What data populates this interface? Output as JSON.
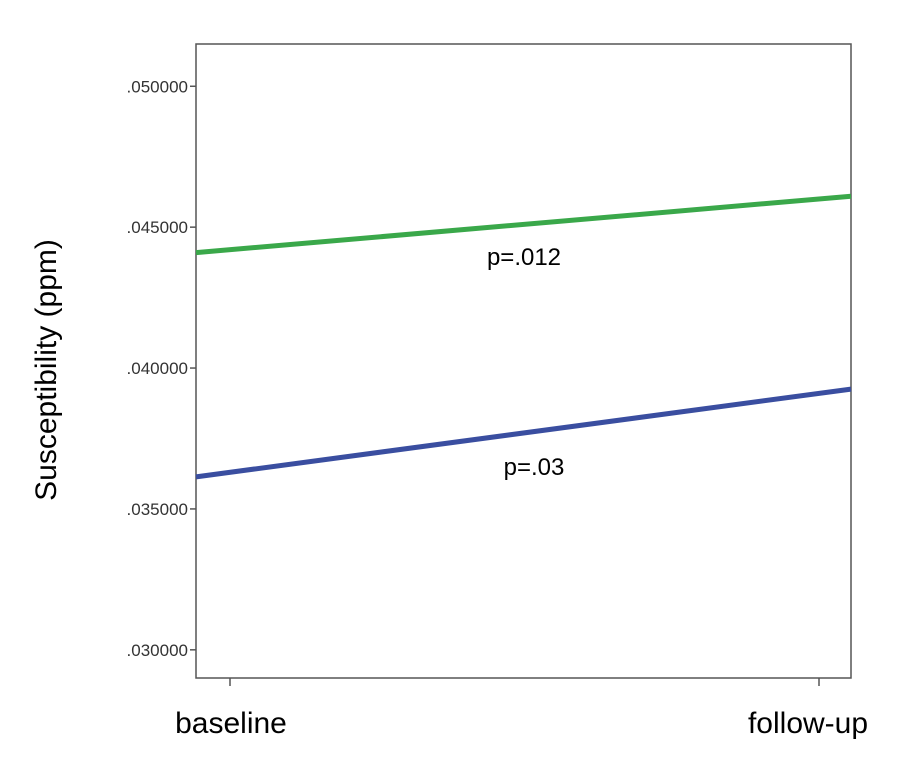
{
  "chart_data": {
    "type": "line",
    "title": "",
    "xlabel": "",
    "ylabel": "Susceptibility (ppm)",
    "categories": [
      "baseline",
      "follow-up"
    ],
    "ylim": [
      0.029,
      0.0515
    ],
    "yticks": [
      0.03,
      0.035,
      0.04,
      0.045,
      0.05
    ],
    "ytick_labels": [
      ".030000",
      ".035000",
      ".040000",
      ".045000",
      ".050000"
    ],
    "grid": false,
    "series": [
      {
        "values": [
          0.0442,
          0.046
        ],
        "color": "#3aa84a",
        "annotation": "p=.012"
      },
      {
        "values": [
          0.0363,
          0.0391
        ],
        "color": "#3a4ea0",
        "annotation": "p=.03"
      }
    ]
  }
}
